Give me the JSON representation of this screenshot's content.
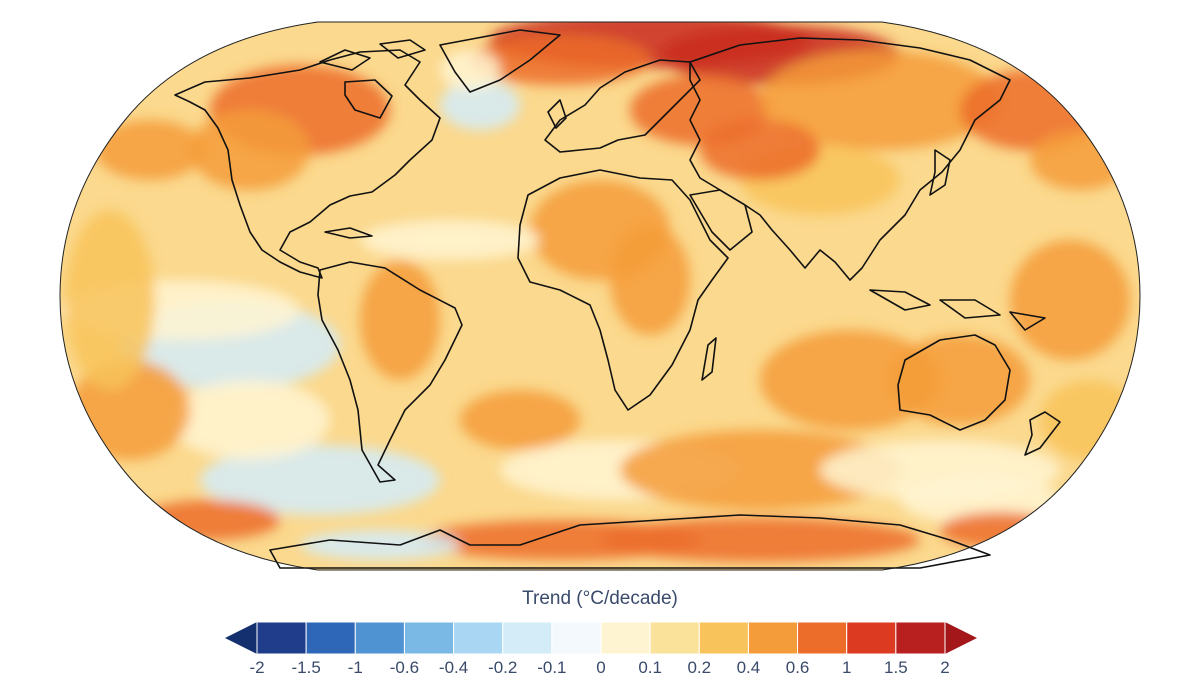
{
  "map": {
    "projection": "Robinson-like ellipse",
    "legend": {
      "title": "Trend (°C/decade)",
      "ticks": [
        "-2",
        "-1.5",
        "-1",
        "-0.6",
        "-0.4",
        "-0.2",
        "-0.1",
        "0",
        "0.1",
        "0.2",
        "0.4",
        "0.6",
        "1",
        "1.5",
        "2"
      ],
      "colors": [
        "#1f3d8a",
        "#2e67b8",
        "#4f93d3",
        "#7ab8e6",
        "#a9d7f3",
        "#d3ecf8",
        "#f3f9fd",
        "#fff4d2",
        "#fbe29a",
        "#f8c35a",
        "#f49c3a",
        "#ec6c2a",
        "#dd3a22",
        "#b81f1f"
      ],
      "under_color": "#14306e",
      "over_color": "#a3171b"
    },
    "palette": {
      "ocean_base": "#fbd98e",
      "warm": "#f8c35a",
      "warmer": "#f49c3a",
      "hot": "#ec6c2a",
      "hottest": "#c92a1f",
      "cool": "#fff4d2",
      "cold": "#d3ecf8",
      "coast": "#111111"
    }
  }
}
